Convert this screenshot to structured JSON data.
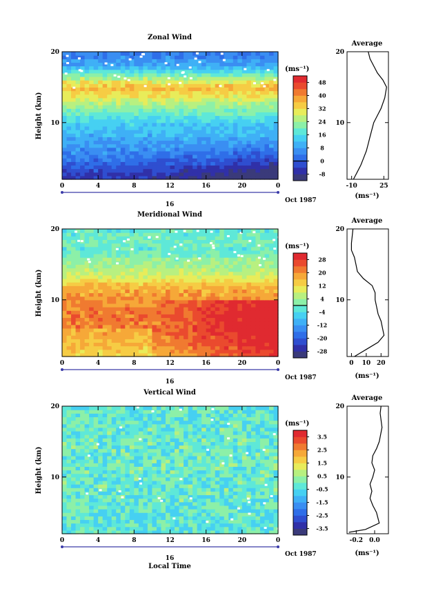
{
  "figure": {
    "date_label": "Oct 1987",
    "day_label": "16",
    "xlabel": "Local Time",
    "ylabel": "Height (km)",
    "x_ticks": [
      "0",
      "4",
      "8",
      "12",
      "16",
      "20",
      "0"
    ],
    "y_ticks": [
      "20",
      "10"
    ],
    "unit_label": "(ms⁻¹)",
    "profile_title": "Average",
    "profile_unit": "(ms⁻¹)"
  },
  "chart_data": [
    {
      "type": "heatmap",
      "title": "Zonal Wind",
      "xlabel": "",
      "ylabel": "Height (km)",
      "xlim": [
        0,
        24
      ],
      "ylim": [
        2,
        20
      ],
      "x_ticks": [
        "0",
        "4",
        "8",
        "12",
        "16",
        "20",
        "0"
      ],
      "y_ticks": [
        "20",
        "10"
      ],
      "colorbar": {
        "label": "(ms⁻¹)",
        "ticks": [
          "48",
          "40",
          "32",
          "24",
          "16",
          "8",
          "0",
          "-8"
        ],
        "range": [
          -12,
          52
        ],
        "contour_level": 0,
        "colors": [
          "#3a3a7a",
          "#3030a8",
          "#2f4ed0",
          "#2f6ee8",
          "#3a8ef2",
          "#3fb0f6",
          "#46d0f2",
          "#5ee8d8",
          "#8cf0a8",
          "#b8f080",
          "#e8ec5a",
          "#f6cc44",
          "#f6a838",
          "#f07a30",
          "#ea4a2e",
          "#e02a30"
        ]
      },
      "field_profile": [
        {
          "z": 2,
          "v": -6
        },
        {
          "z": 4,
          "v": 0
        },
        {
          "z": 6,
          "v": 6
        },
        {
          "z": 8,
          "v": 10
        },
        {
          "z": 10,
          "v": 14
        },
        {
          "z": 12,
          "v": 22
        },
        {
          "z": 14,
          "v": 32
        },
        {
          "z": 15,
          "v": 36
        },
        {
          "z": 16,
          "v": 28
        },
        {
          "z": 17,
          "v": 18
        },
        {
          "z": 18,
          "v": 10
        },
        {
          "z": 19,
          "v": 6
        },
        {
          "z": 20,
          "v": 4
        }
      ],
      "profile": {
        "title": "Average",
        "xlim": [
          -15,
          30
        ],
        "x_ticks": [
          "-10",
          "25"
        ],
        "xlabel": "(ms⁻¹)",
        "x": [
          -8,
          -4,
          0,
          3,
          6,
          8,
          10,
          14,
          18,
          22,
          26,
          28,
          24,
          18,
          14,
          10,
          8
        ],
        "y": [
          2,
          3,
          4,
          5,
          6,
          7,
          8,
          10,
          11,
          12,
          13.5,
          15,
          16,
          17,
          18,
          19,
          20
        ]
      }
    },
    {
      "type": "heatmap",
      "title": "Meridional Wind",
      "xlabel": "",
      "ylabel": "Height (km)",
      "xlim": [
        0,
        24
      ],
      "ylim": [
        2,
        20
      ],
      "x_ticks": [
        "0",
        "4",
        "8",
        "12",
        "16",
        "20",
        "0"
      ],
      "y_ticks": [
        "20",
        "10"
      ],
      "colorbar": {
        "label": "(ms⁻¹)",
        "ticks": [
          "28",
          "20",
          "12",
          "4",
          "-4",
          "-12",
          "-20",
          "-28"
        ],
        "range": [
          -32,
          32
        ],
        "contour_level": 0,
        "colors": [
          "#3a3a7a",
          "#3030a8",
          "#2f4ed0",
          "#2f6ee8",
          "#3a8ef2",
          "#3fb0f6",
          "#46d0f2",
          "#5ee8d8",
          "#8cf0a8",
          "#b8f080",
          "#e8ec5a",
          "#f6cc44",
          "#f6a838",
          "#f07a30",
          "#ea4a2e",
          "#e02a30"
        ]
      },
      "field_profile": [
        {
          "z": 2,
          "v": 16
        },
        {
          "z": 4,
          "v": 20
        },
        {
          "z": 6,
          "v": 22
        },
        {
          "z": 8,
          "v": 22
        },
        {
          "z": 10,
          "v": 20
        },
        {
          "z": 12,
          "v": 16
        },
        {
          "z": 13,
          "v": 10
        },
        {
          "z": 14,
          "v": 6
        },
        {
          "z": 15,
          "v": 4
        },
        {
          "z": 16,
          "v": 2
        },
        {
          "z": 17,
          "v": -2
        },
        {
          "z": 18,
          "v": 0
        },
        {
          "z": 20,
          "v": -2
        }
      ],
      "profile": {
        "title": "Average",
        "xlim": [
          -3,
          25
        ],
        "x_ticks": [
          "0",
          "10",
          "20"
        ],
        "xlabel": "(ms⁻¹)",
        "x": [
          2,
          10,
          18,
          22,
          21,
          20,
          18,
          17,
          16,
          16,
          14,
          8,
          4,
          3,
          2,
          0,
          0,
          1
        ],
        "y": [
          2,
          3,
          4,
          5,
          6,
          7,
          8,
          9,
          10,
          11,
          12,
          13,
          14,
          15,
          16,
          17,
          18,
          20
        ]
      }
    },
    {
      "type": "heatmap",
      "title": "Vertical Wind",
      "xlabel": "Local Time",
      "ylabel": "Height (km)",
      "xlim": [
        0,
        24
      ],
      "ylim": [
        2,
        20
      ],
      "x_ticks": [
        "0",
        "4",
        "8",
        "12",
        "16",
        "20",
        "0"
      ],
      "y_ticks": [
        "20",
        "10"
      ],
      "colorbar": {
        "label": "(ms⁻¹)",
        "ticks": [
          "3.5",
          "2.5",
          "1.5",
          "0.5",
          "-0.5",
          "-1.5",
          "-2.5",
          "-3.5"
        ],
        "range": [
          -4,
          4
        ],
        "colors": [
          "#3a3a7a",
          "#3030a8",
          "#2f4ed0",
          "#2f6ee8",
          "#3a8ef2",
          "#3fb0f6",
          "#46d0f2",
          "#5ee8d8",
          "#8cf0a8",
          "#b8f080",
          "#e8ec5a",
          "#f6cc44",
          "#f6a838",
          "#f07a30",
          "#ea4a2e",
          "#e02a30"
        ]
      },
      "field_profile": [
        {
          "z": 2,
          "v": -0.3
        },
        {
          "z": 6,
          "v": -0.2
        },
        {
          "z": 10,
          "v": -0.1
        },
        {
          "z": 14,
          "v": -0.1
        },
        {
          "z": 18,
          "v": -0.2
        },
        {
          "z": 20,
          "v": -0.2
        }
      ],
      "profile": {
        "title": "Average",
        "xlim": [
          -0.3,
          0.15
        ],
        "x_ticks": [
          "-0.2",
          "0.0"
        ],
        "xlabel": "(ms⁻¹)",
        "x": [
          -0.28,
          -0.1,
          0.05,
          0.02,
          -0.02,
          -0.05,
          -0.03,
          -0.05,
          -0.02,
          0.0,
          -0.03,
          -0.02,
          0.02,
          0.05,
          0.08,
          0.06,
          0.07
        ],
        "y": [
          2.2,
          2.6,
          3.5,
          5,
          6,
          7,
          8,
          9,
          10,
          11,
          12,
          13,
          14,
          15,
          17,
          19,
          20
        ]
      }
    }
  ]
}
